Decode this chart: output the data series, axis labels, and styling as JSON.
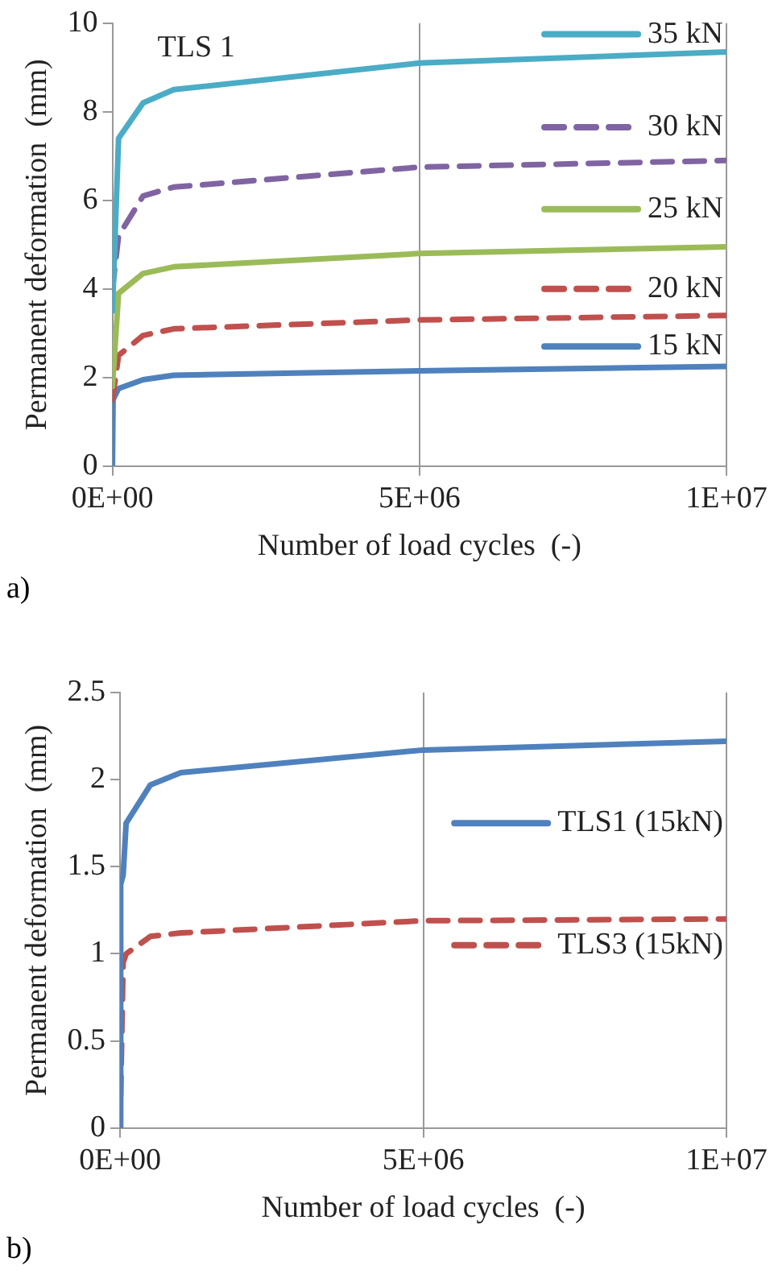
{
  "chart_data": [
    {
      "type": "line",
      "title": "TLS 1",
      "xlabel": "Number of load cycles  (-)",
      "ylabel": "Permanent deformation  (mm)",
      "annotations": [
        "a)"
      ],
      "xlim": [
        0,
        10000000
      ],
      "xticks": [
        {
          "value": 0,
          "label": "0E+00"
        },
        {
          "value": 5000000,
          "label": "5E+06"
        },
        {
          "value": 10000000,
          "label": "1E+07"
        }
      ],
      "ylim": [
        0,
        10
      ],
      "yticks": [
        0,
        2,
        4,
        6,
        8,
        10
      ],
      "grid": "x",
      "legend": "top right",
      "marker": "none",
      "series": [
        {
          "name": "35 kN",
          "color": "#4bacc6",
          "line_style": "solid",
          "x": [
            0,
            100000,
            500000,
            1000000,
            5000000,
            10000000
          ],
          "values": [
            3.5,
            7.4,
            8.2,
            8.5,
            9.1,
            9.35
          ]
        },
        {
          "name": "30 kN",
          "color": "#8064a2",
          "line_style": "dashed",
          "x": [
            0,
            100000,
            500000,
            1000000,
            5000000,
            10000000
          ],
          "values": [
            4.0,
            5.2,
            6.1,
            6.3,
            6.75,
            6.9
          ]
        },
        {
          "name": "25 kN",
          "color": "#9bbb59",
          "line_style": "solid",
          "x": [
            0,
            100000,
            500000,
            1000000,
            5000000,
            10000000
          ],
          "values": [
            1.8,
            3.9,
            4.35,
            4.5,
            4.8,
            4.95
          ]
        },
        {
          "name": "20 kN",
          "color": "#c0504d",
          "line_style": "dashed",
          "x": [
            0,
            100000,
            500000,
            1000000,
            5000000,
            10000000
          ],
          "values": [
            1.5,
            2.5,
            2.95,
            3.1,
            3.3,
            3.4
          ]
        },
        {
          "name": "15 kN",
          "color": "#4f81bd",
          "line_style": "solid",
          "x": [
            0,
            10000,
            100000,
            500000,
            1000000,
            5000000,
            10000000
          ],
          "values": [
            0,
            1.5,
            1.75,
            1.95,
            2.05,
            2.15,
            2.25
          ]
        }
      ]
    },
    {
      "type": "line",
      "xlabel": "Number of load cycles  (-)",
      "ylabel": "Permanent deformation  (mm)",
      "annotations": [
        "b)"
      ],
      "xlim": [
        0,
        10000000
      ],
      "xticks": [
        {
          "value": 0,
          "label": "0E+00"
        },
        {
          "value": 5000000,
          "label": "5E+06"
        },
        {
          "value": 10000000,
          "label": "1E+07"
        }
      ],
      "ylim": [
        0,
        2.5
      ],
      "yticks": [
        0,
        0.5,
        1,
        1.5,
        2,
        2.5
      ],
      "grid": "x",
      "legend": "right",
      "marker": "none",
      "series": [
        {
          "name": "TLS1 (15kN)",
          "color": "#4f81bd",
          "line_style": "solid",
          "x": [
            0,
            10000,
            50000,
            100000,
            500000,
            1000000,
            5000000,
            10000000
          ],
          "values": [
            0,
            1.4,
            1.45,
            1.75,
            1.97,
            2.04,
            2.17,
            2.22
          ]
        },
        {
          "name": "TLS3 (15kN)",
          "color": "#c0504d",
          "line_style": "dashed",
          "x": [
            0,
            50000,
            100000,
            500000,
            1000000,
            5000000,
            10000000
          ],
          "values": [
            0,
            0.95,
            1.0,
            1.1,
            1.12,
            1.19,
            1.2
          ]
        }
      ]
    }
  ]
}
